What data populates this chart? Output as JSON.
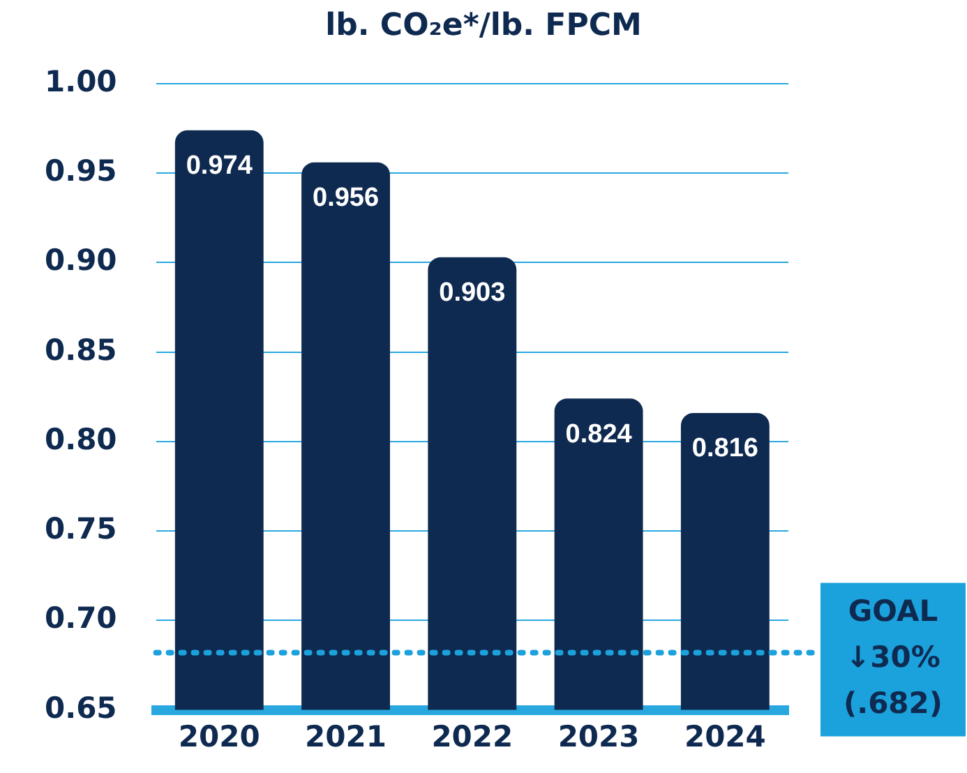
{
  "chart_data": {
    "type": "bar",
    "title": "lb. CO₂e*/lb. FPCM",
    "categories": [
      "2020",
      "2021",
      "2022",
      "2023",
      "2024"
    ],
    "values": [
      0.974,
      0.956,
      0.903,
      0.824,
      0.816
    ],
    "color": "#0f2a50",
    "ylim": [
      0.65,
      1.0
    ],
    "yticks": [
      {
        "value": 0.65,
        "label": "0.65"
      },
      {
        "value": 0.7,
        "label": "0.70"
      },
      {
        "value": 0.75,
        "label": "0.75"
      },
      {
        "value": 0.8,
        "label": "0.80"
      },
      {
        "value": 0.85,
        "label": "0.85"
      },
      {
        "value": 0.9,
        "label": "0.90"
      },
      {
        "value": 0.95,
        "label": "0.95"
      },
      {
        "value": 1.0,
        "label": "1.00"
      }
    ],
    "grid": "y",
    "legend": false,
    "data_labels": true,
    "ref_lines": [
      {
        "axis": "y",
        "value": 0.682,
        "label": "GOAL ↓30% (.682)",
        "color": "#1ba1dc",
        "line_style": "dotted"
      }
    ]
  }
}
